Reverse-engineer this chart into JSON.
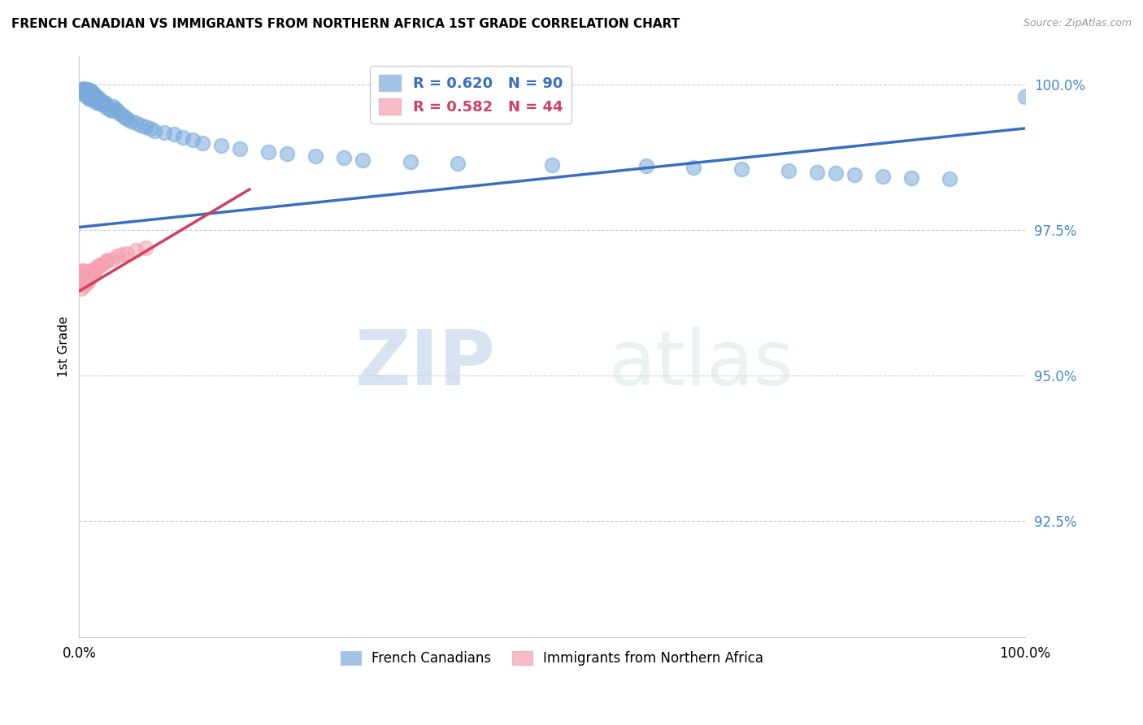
{
  "title": "FRENCH CANADIAN VS IMMIGRANTS FROM NORTHERN AFRICA 1ST GRADE CORRELATION CHART",
  "source": "Source: ZipAtlas.com",
  "ylabel": "1st Grade",
  "watermark_zip": "ZIP",
  "watermark_atlas": "atlas",
  "xlim": [
    0.0,
    1.0
  ],
  "ylim": [
    0.905,
    1.005
  ],
  "ytick_vals": [
    0.925,
    0.95,
    0.975,
    1.0
  ],
  "ytick_labels": [
    "92.5%",
    "95.0%",
    "97.5%",
    "100.0%"
  ],
  "xtick_vals": [
    0.0,
    0.25,
    0.5,
    0.75,
    1.0
  ],
  "xtick_labels": [
    "0.0%",
    "",
    "",
    "",
    "100.0%"
  ],
  "blue_R": 0.62,
  "blue_N": 90,
  "pink_R": 0.582,
  "pink_N": 44,
  "blue_color": "#7AABDC",
  "pink_color": "#F5A0B0",
  "trend_blue_color": "#3A6FBF",
  "trend_pink_color": "#D04060",
  "legend_label_blue": "French Canadians",
  "legend_label_pink": "Immigrants from Northern Africa",
  "blue_scatter_x": [
    0.002,
    0.003,
    0.004,
    0.005,
    0.005,
    0.006,
    0.006,
    0.006,
    0.007,
    0.007,
    0.008,
    0.008,
    0.008,
    0.009,
    0.009,
    0.009,
    0.01,
    0.01,
    0.01,
    0.01,
    0.011,
    0.011,
    0.012,
    0.012,
    0.012,
    0.013,
    0.013,
    0.014,
    0.014,
    0.015,
    0.015,
    0.015,
    0.016,
    0.016,
    0.017,
    0.017,
    0.018,
    0.018,
    0.019,
    0.02,
    0.02,
    0.021,
    0.022,
    0.023,
    0.025,
    0.026,
    0.027,
    0.028,
    0.03,
    0.032,
    0.034,
    0.036,
    0.038,
    0.04,
    0.042,
    0.045,
    0.048,
    0.05,
    0.055,
    0.06,
    0.065,
    0.07,
    0.075,
    0.08,
    0.09,
    0.1,
    0.11,
    0.12,
    0.13,
    0.15,
    0.17,
    0.2,
    0.22,
    0.25,
    0.28,
    0.3,
    0.35,
    0.4,
    0.5,
    0.6,
    0.65,
    0.7,
    0.75,
    0.78,
    0.8,
    0.82,
    0.85,
    0.88,
    0.92,
    1.0
  ],
  "blue_scatter_y": [
    0.999,
    0.9985,
    0.9992,
    0.9988,
    0.9993,
    0.999,
    0.9985,
    0.9988,
    0.9982,
    0.9988,
    0.9985,
    0.9988,
    0.9992,
    0.998,
    0.9985,
    0.999,
    0.9978,
    0.9982,
    0.9987,
    0.999,
    0.9975,
    0.9982,
    0.998,
    0.9985,
    0.999,
    0.9978,
    0.9983,
    0.9982,
    0.9986,
    0.9975,
    0.998,
    0.9985,
    0.9978,
    0.9982,
    0.9975,
    0.998,
    0.997,
    0.9978,
    0.9974,
    0.9972,
    0.9978,
    0.997,
    0.9968,
    0.9972,
    0.9965,
    0.997,
    0.9965,
    0.9968,
    0.996,
    0.9958,
    0.9955,
    0.9962,
    0.9958,
    0.9955,
    0.9952,
    0.9948,
    0.9945,
    0.9942,
    0.9938,
    0.9935,
    0.993,
    0.9928,
    0.9925,
    0.992,
    0.9918,
    0.9915,
    0.991,
    0.9905,
    0.99,
    0.9895,
    0.989,
    0.9885,
    0.9882,
    0.9878,
    0.9875,
    0.987,
    0.9868,
    0.9865,
    0.9862,
    0.986,
    0.9858,
    0.9855,
    0.9852,
    0.985,
    0.9848,
    0.9845,
    0.9842,
    0.984,
    0.9838,
    0.998
  ],
  "pink_scatter_x": [
    0.001,
    0.002,
    0.002,
    0.003,
    0.003,
    0.003,
    0.004,
    0.004,
    0.004,
    0.005,
    0.005,
    0.005,
    0.006,
    0.006,
    0.006,
    0.007,
    0.007,
    0.008,
    0.008,
    0.009,
    0.009,
    0.01,
    0.01,
    0.011,
    0.011,
    0.012,
    0.012,
    0.013,
    0.014,
    0.015,
    0.016,
    0.017,
    0.018,
    0.02,
    0.022,
    0.025,
    0.028,
    0.03,
    0.035,
    0.04,
    0.045,
    0.05,
    0.06,
    0.07
  ],
  "pink_scatter_y": [
    0.967,
    0.965,
    0.966,
    0.966,
    0.967,
    0.968,
    0.966,
    0.967,
    0.968,
    0.9655,
    0.9665,
    0.9675,
    0.966,
    0.9668,
    0.9678,
    0.9658,
    0.9668,
    0.9662,
    0.9672,
    0.966,
    0.967,
    0.9665,
    0.9675,
    0.9668,
    0.9678,
    0.967,
    0.968,
    0.9672,
    0.9678,
    0.9675,
    0.968,
    0.9685,
    0.9682,
    0.9688,
    0.969,
    0.9692,
    0.9695,
    0.9698,
    0.97,
    0.9705,
    0.9708,
    0.971,
    0.9715,
    0.972
  ],
  "blue_trend_x0": 0.0,
  "blue_trend_y0": 0.9755,
  "blue_trend_x1": 1.0,
  "blue_trend_y1": 0.9925,
  "pink_trend_x0": 0.0,
  "pink_trend_y0": 0.9645,
  "pink_trend_x1": 0.18,
  "pink_trend_y1": 0.982
}
